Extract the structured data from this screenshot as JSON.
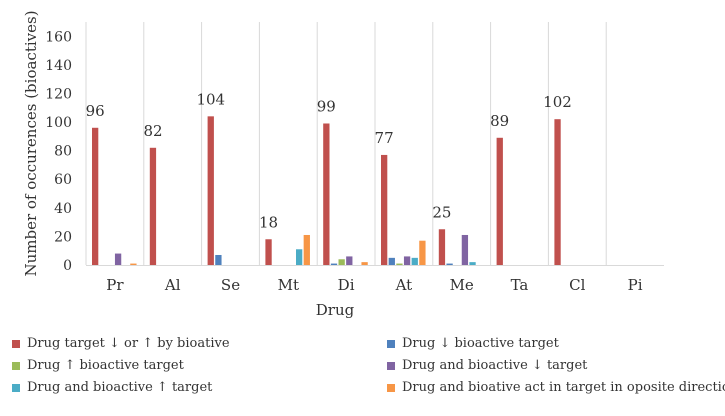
{
  "chart_data": {
    "type": "bar",
    "title": "",
    "xlabel": "Drug",
    "ylabel": "Number of occurences (bioactives)",
    "ylim": [
      0,
      170
    ],
    "yticks": [
      0,
      20,
      40,
      60,
      80,
      100,
      120,
      140,
      160
    ],
    "categories": [
      "Pr",
      "Al",
      "Se",
      "Mt",
      "Di",
      "At",
      "Me",
      "Ta",
      "Cl",
      "Pi"
    ],
    "series": [
      {
        "name": "Drug target ↓ or ↑ by bioative",
        "color": "#C0504D",
        "values": [
          96,
          82,
          104,
          18,
          99,
          77,
          25,
          89,
          102,
          0
        ]
      },
      {
        "name": "Drug ↓ bioactive target",
        "color": "#4F81BD",
        "values": [
          0,
          0,
          7,
          0,
          1,
          5,
          1,
          0,
          0,
          0
        ]
      },
      {
        "name": "Drug ↑ bioactive target",
        "color": "#9BBB59",
        "values": [
          0,
          0,
          0,
          0,
          4,
          1,
          0,
          0,
          0,
          0
        ]
      },
      {
        "name": "Drug and bioactive ↓ target",
        "color": "#8064A2",
        "values": [
          8,
          0,
          0,
          0,
          6,
          6,
          21,
          0,
          0,
          0
        ]
      },
      {
        "name": "Drug and bioactive ↑ target",
        "color": "#4BACC6",
        "values": [
          0,
          0,
          0,
          11,
          0,
          5,
          2,
          0,
          0,
          0
        ]
      },
      {
        "name": "Drug and bioative act in target in oposite direction",
        "color": "#F79646",
        "values": [
          1,
          0,
          0,
          21,
          2,
          17,
          0,
          0,
          0,
          0
        ]
      }
    ],
    "data_labels": [
      {
        "category": "Pr",
        "value": "96"
      },
      {
        "category": "Al",
        "value": "82"
      },
      {
        "category": "Se",
        "value": "104"
      },
      {
        "category": "Mt",
        "value": "18"
      },
      {
        "category": "Di",
        "value": "99"
      },
      {
        "category": "At",
        "value": "77"
      },
      {
        "category": "Me",
        "value": "25"
      },
      {
        "category": "Ta",
        "value": "89"
      },
      {
        "category": "Cl",
        "value": "102"
      }
    ],
    "grid": false,
    "legend": "bottom"
  }
}
